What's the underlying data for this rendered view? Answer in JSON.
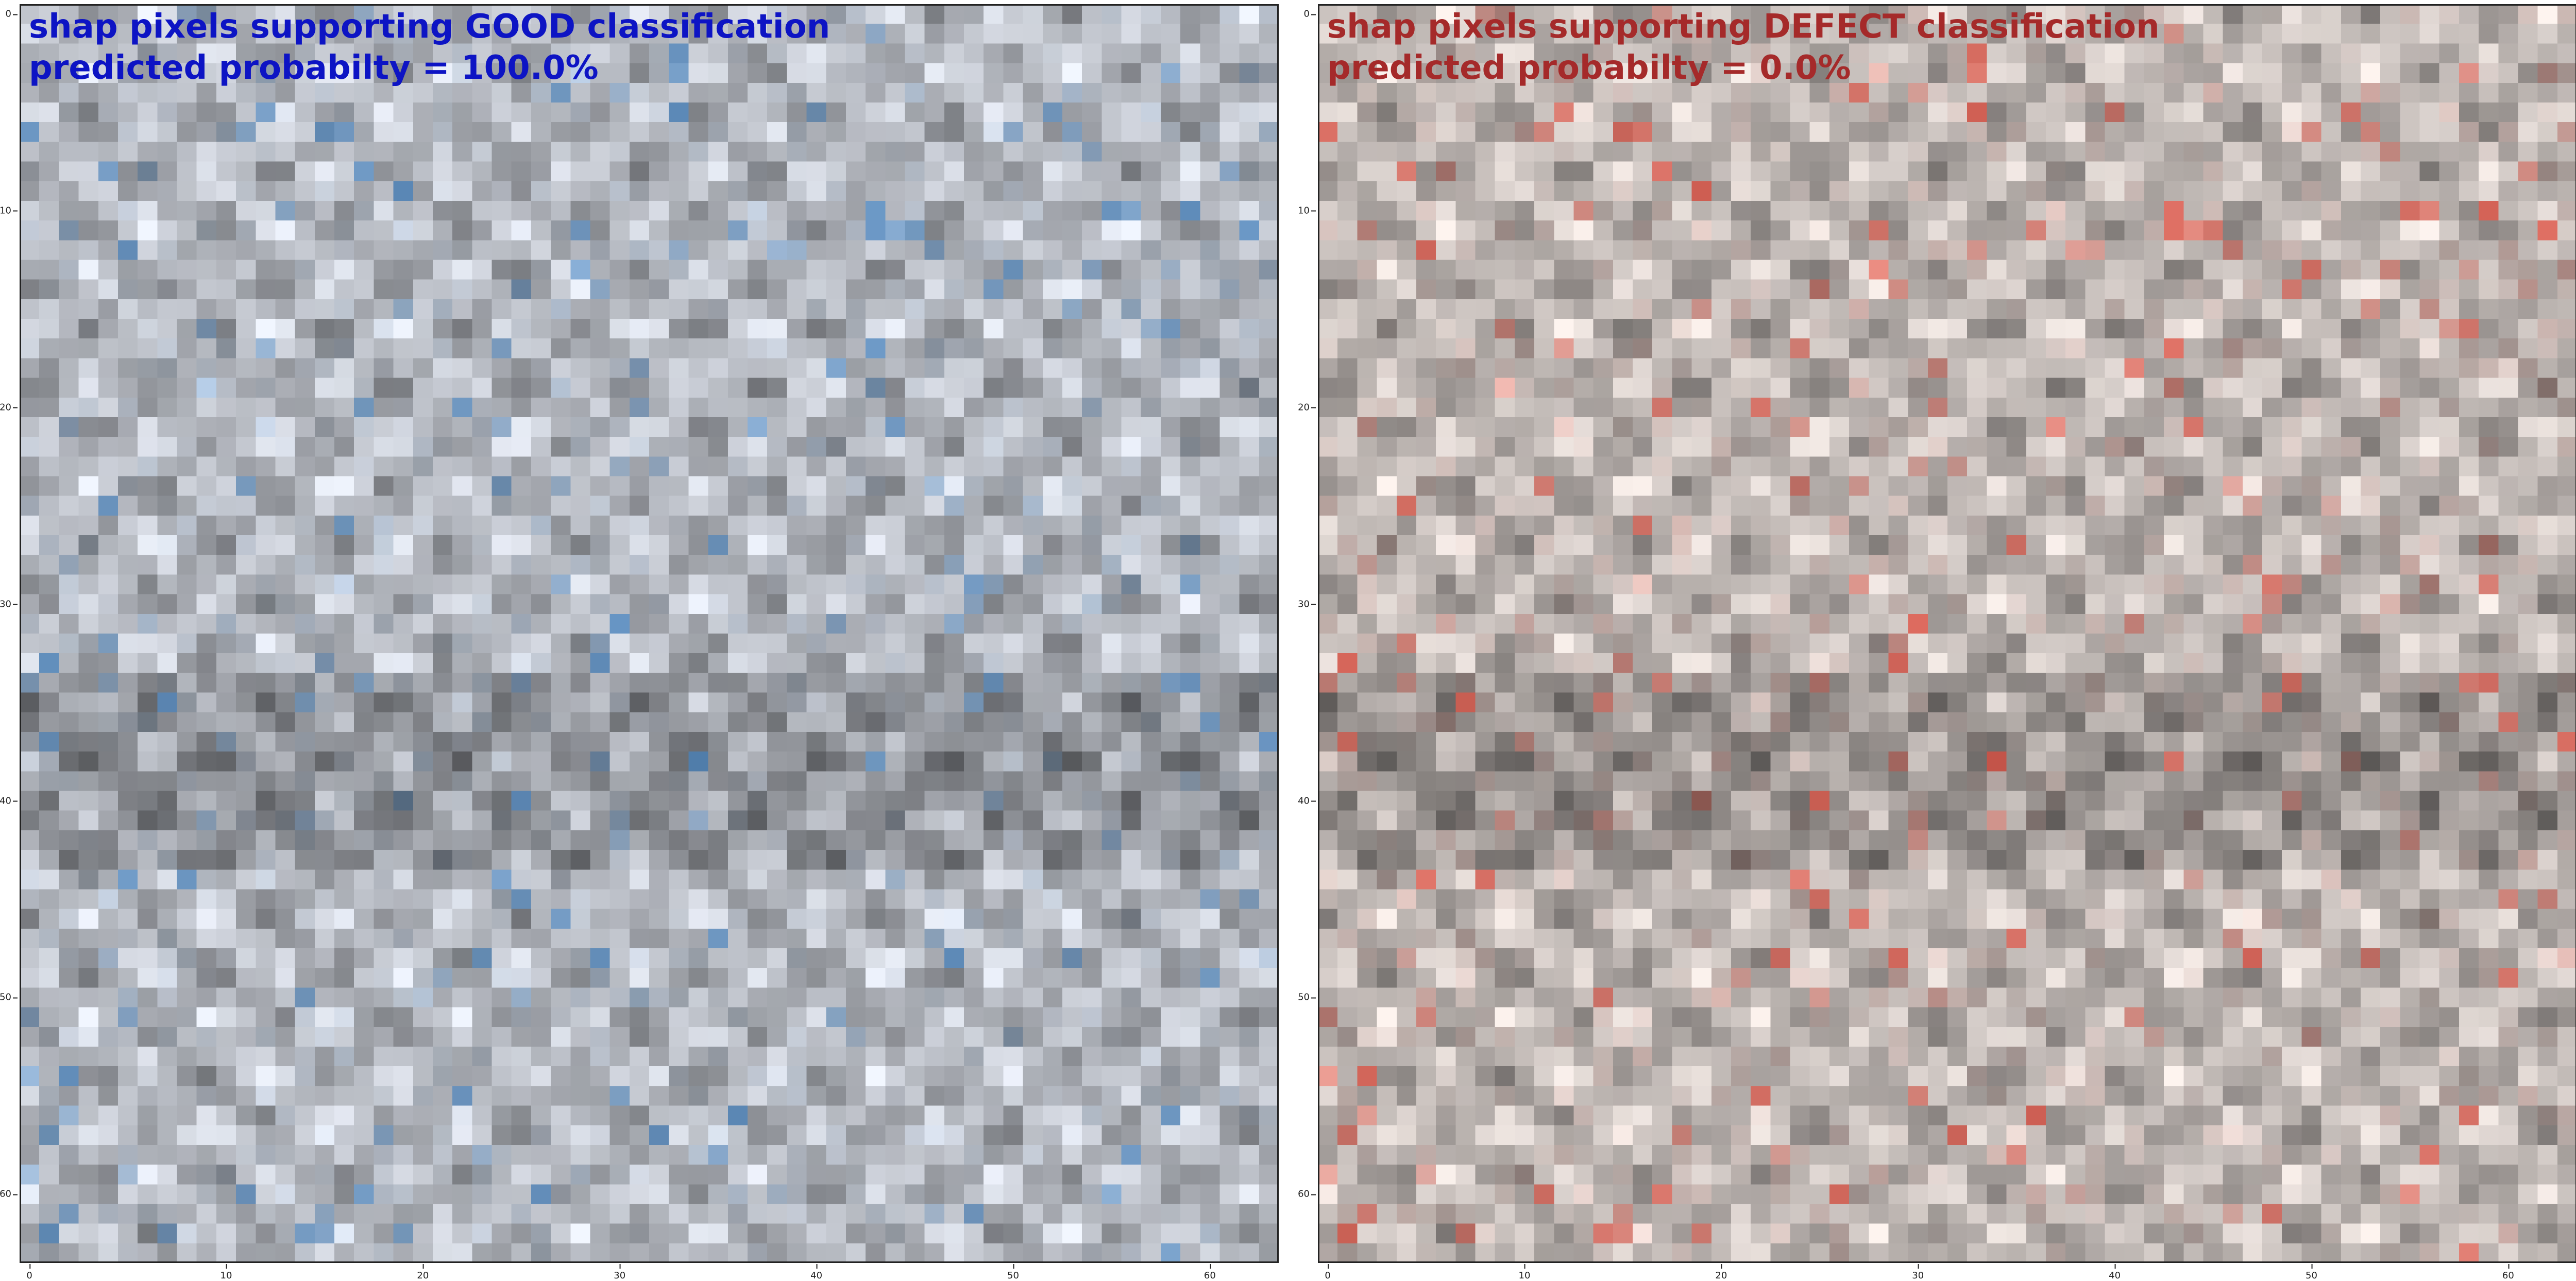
{
  "panels": [
    {
      "title_line1": "shap pixels supporting GOOD classification",
      "title_line2": "predicted probabilty = 100.0%",
      "title_color": "#0d14c4",
      "overlay_hue": "blue",
      "overlay_rgb": [
        70,
        130,
        190
      ]
    },
    {
      "title_line1": "shap pixels supporting DEFECT classification",
      "title_line2": "predicted probabilty = 0.0%",
      "title_color": "#a52a2a",
      "overlay_hue": "red",
      "overlay_rgb": [
        225,
        75,
        60
      ]
    }
  ],
  "grid_size": 64,
  "x_ticks": [
    "0",
    "10",
    "20",
    "30",
    "40",
    "50",
    "60"
  ],
  "y_ticks": [
    "0",
    "10",
    "20",
    "30",
    "40",
    "50",
    "60"
  ]
}
